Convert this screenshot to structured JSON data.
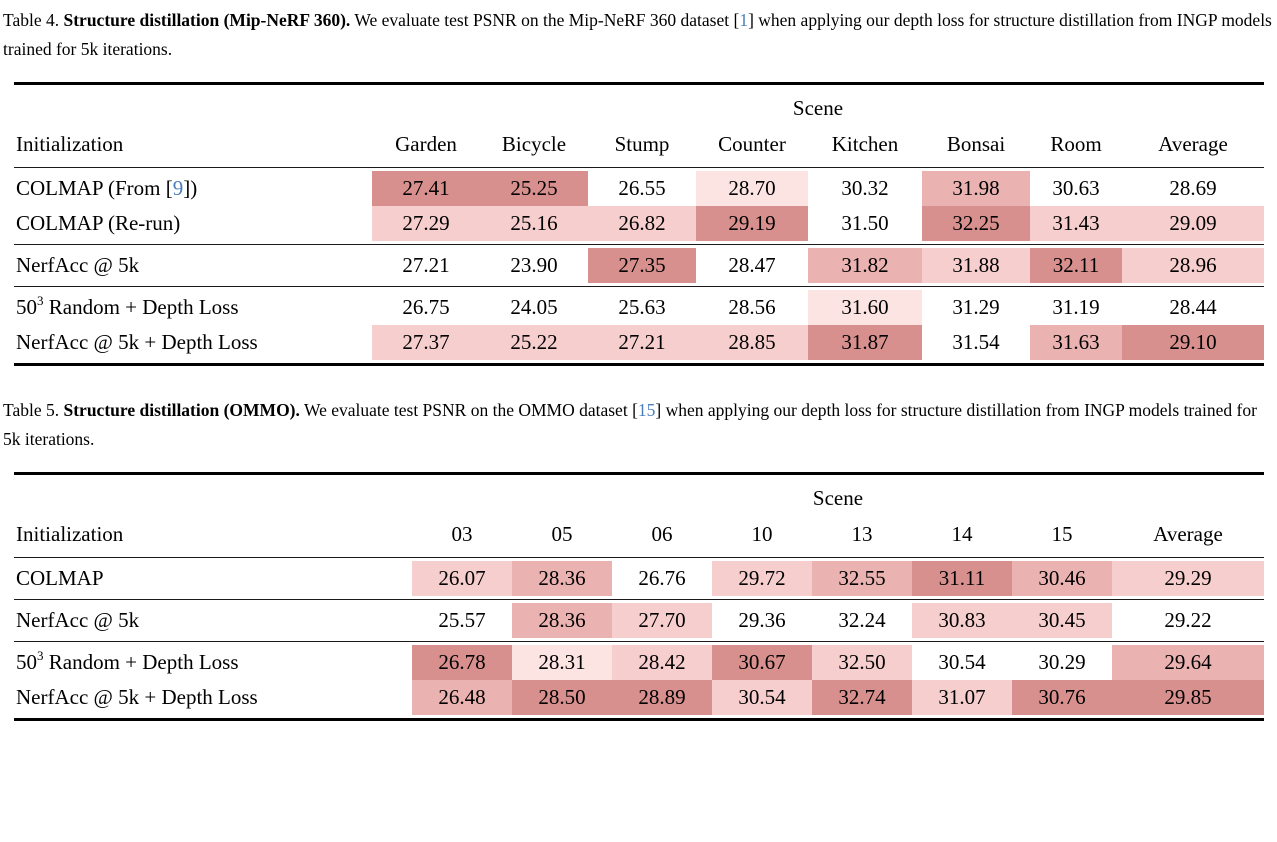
{
  "palette": {
    "cite": "#4a7ebb",
    "text": "#000000",
    "rule": "#000000",
    "shades": [
      "transparent",
      "#fce4e3",
      "#f6cecd",
      "#eab2b0",
      "#d8908e"
    ]
  },
  "tables": [
    {
      "name": "structure-distillation-mipnerf360",
      "caption": {
        "label": "Table 4. ",
        "bold": "Structure distillation (Mip-NeRF 360).",
        "body1": " We evaluate test PSNR on the Mip-NeRF 360 dataset [",
        "cite": "1",
        "body2": "] when applying our depth loss for structure distillation from INGP models trained for 5k iterations."
      },
      "scene_header": "Scene",
      "col_label": "Initialization",
      "columns": [
        "Garden",
        "Bicycle",
        "Stump",
        "Counter",
        "Kitchen",
        "Bonsai",
        "Room",
        "Average"
      ],
      "sections": [
        {
          "rows": [
            {
              "label": [
                {
                  "t": "COLMAP (From ["
                },
                {
                  "t": "9",
                  "c": "cite"
                },
                {
                  "t": "])"
                }
              ],
              "cells": [
                {
                  "v": "27.41",
                  "s": 4
                },
                {
                  "v": "25.25",
                  "s": 4
                },
                {
                  "v": "26.55",
                  "s": 0
                },
                {
                  "v": "28.70",
                  "s": 1
                },
                {
                  "v": "30.32",
                  "s": 0
                },
                {
                  "v": "31.98",
                  "s": 3
                },
                {
                  "v": "30.63",
                  "s": 0
                },
                {
                  "v": "28.69",
                  "s": 0
                }
              ]
            },
            {
              "label": [
                {
                  "t": "COLMAP (Re-run)"
                }
              ],
              "cells": [
                {
                  "v": "27.29",
                  "s": 2
                },
                {
                  "v": "25.16",
                  "s": 2
                },
                {
                  "v": "26.82",
                  "s": 2
                },
                {
                  "v": "29.19",
                  "s": 4
                },
                {
                  "v": "31.50",
                  "s": 0
                },
                {
                  "v": "32.25",
                  "s": 4
                },
                {
                  "v": "31.43",
                  "s": 2
                },
                {
                  "v": "29.09",
                  "s": 2
                }
              ]
            }
          ]
        },
        {
          "rows": [
            {
              "label": [
                {
                  "t": "NerfAcc @ 5k"
                }
              ],
              "cells": [
                {
                  "v": "27.21",
                  "s": 0
                },
                {
                  "v": "23.90",
                  "s": 0
                },
                {
                  "v": "27.35",
                  "s": 4
                },
                {
                  "v": "28.47",
                  "s": 0
                },
                {
                  "v": "31.82",
                  "s": 3
                },
                {
                  "v": "31.88",
                  "s": 2
                },
                {
                  "v": "32.11",
                  "s": 4
                },
                {
                  "v": "28.96",
                  "s": 2
                }
              ]
            }
          ]
        },
        {
          "rows": [
            {
              "label": [
                {
                  "t": "50"
                },
                {
                  "t": "3",
                  "c": "sup"
                },
                {
                  "t": " Random + Depth Loss"
                }
              ],
              "cells": [
                {
                  "v": "26.75",
                  "s": 0
                },
                {
                  "v": "24.05",
                  "s": 0
                },
                {
                  "v": "25.63",
                  "s": 0
                },
                {
                  "v": "28.56",
                  "s": 0
                },
                {
                  "v": "31.60",
                  "s": 1
                },
                {
                  "v": "31.29",
                  "s": 0
                },
                {
                  "v": "31.19",
                  "s": 0
                },
                {
                  "v": "28.44",
                  "s": 0
                }
              ]
            },
            {
              "label": [
                {
                  "t": "NerfAcc @ 5k + Depth Loss"
                }
              ],
              "cells": [
                {
                  "v": "27.37",
                  "s": 2
                },
                {
                  "v": "25.22",
                  "s": 2
                },
                {
                  "v": "27.21",
                  "s": 2
                },
                {
                  "v": "28.85",
                  "s": 2
                },
                {
                  "v": "31.87",
                  "s": 4
                },
                {
                  "v": "31.54",
                  "s": 0
                },
                {
                  "v": "31.63",
                  "s": 3
                },
                {
                  "v": "29.10",
                  "s": 4
                }
              ]
            }
          ]
        }
      ]
    },
    {
      "name": "structure-distillation-ommo",
      "caption": {
        "label": "Table 5. ",
        "bold": "Structure distillation (OMMO).",
        "body1": " We evaluate test PSNR on the OMMO dataset [",
        "cite": "15",
        "body2": "] when applying our depth loss for structure distillation from INGP models trained for 5k iterations."
      },
      "scene_header": "Scene",
      "col_label": "Initialization",
      "columns": [
        "03",
        "05",
        "06",
        "10",
        "13",
        "14",
        "15",
        "Average"
      ],
      "sections": [
        {
          "rows": [
            {
              "label": [
                {
                  "t": "COLMAP"
                }
              ],
              "cells": [
                {
                  "v": "26.07",
                  "s": 2
                },
                {
                  "v": "28.36",
                  "s": 3
                },
                {
                  "v": "26.76",
                  "s": 0
                },
                {
                  "v": "29.72",
                  "s": 2
                },
                {
                  "v": "32.55",
                  "s": 3
                },
                {
                  "v": "31.11",
                  "s": 4
                },
                {
                  "v": "30.46",
                  "s": 3
                },
                {
                  "v": "29.29",
                  "s": 2
                }
              ]
            }
          ]
        },
        {
          "rows": [
            {
              "label": [
                {
                  "t": "NerfAcc @ 5k"
                }
              ],
              "cells": [
                {
                  "v": "25.57",
                  "s": 0
                },
                {
                  "v": "28.36",
                  "s": 3
                },
                {
                  "v": "27.70",
                  "s": 2
                },
                {
                  "v": "29.36",
                  "s": 0
                },
                {
                  "v": "32.24",
                  "s": 0
                },
                {
                  "v": "30.83",
                  "s": 2
                },
                {
                  "v": "30.45",
                  "s": 2
                },
                {
                  "v": "29.22",
                  "s": 0
                }
              ]
            }
          ]
        },
        {
          "rows": [
            {
              "label": [
                {
                  "t": "50"
                },
                {
                  "t": "3",
                  "c": "sup"
                },
                {
                  "t": " Random + Depth Loss"
                }
              ],
              "cells": [
                {
                  "v": "26.78",
                  "s": 4
                },
                {
                  "v": "28.31",
                  "s": 1
                },
                {
                  "v": "28.42",
                  "s": 2
                },
                {
                  "v": "30.67",
                  "s": 4
                },
                {
                  "v": "32.50",
                  "s": 2
                },
                {
                  "v": "30.54",
                  "s": 0
                },
                {
                  "v": "30.29",
                  "s": 0
                },
                {
                  "v": "29.64",
                  "s": 3
                }
              ]
            },
            {
              "label": [
                {
                  "t": "NerfAcc @ 5k + Depth Loss"
                }
              ],
              "cells": [
                {
                  "v": "26.48",
                  "s": 3
                },
                {
                  "v": "28.50",
                  "s": 4
                },
                {
                  "v": "28.89",
                  "s": 4
                },
                {
                  "v": "30.54",
                  "s": 2
                },
                {
                  "v": "32.74",
                  "s": 4
                },
                {
                  "v": "31.07",
                  "s": 2
                },
                {
                  "v": "30.76",
                  "s": 4
                },
                {
                  "v": "29.85",
                  "s": 4
                }
              ]
            }
          ]
        }
      ]
    }
  ]
}
